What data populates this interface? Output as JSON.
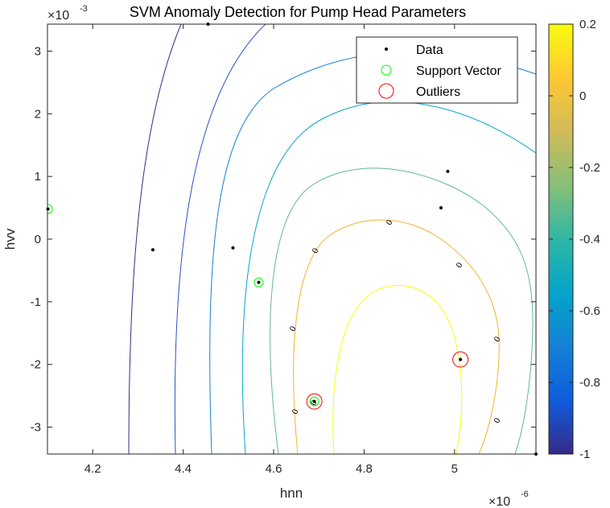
{
  "chart_data": {
    "type": "contour",
    "title": "SVM Anomaly Detection for Pump Head Parameters",
    "xlabel": "hnn",
    "ylabel": "hvv",
    "x_exponent": "×10",
    "x_exponent_power": "-6",
    "y_exponent": "×10",
    "y_exponent_power": "-3",
    "xlim": [
      4.1,
      5.18
    ],
    "ylim": [
      -3.43,
      3.43
    ],
    "x_ticks": [
      4.2,
      4.4,
      4.6,
      4.8,
      5
    ],
    "x_tick_labels": [
      "4.2",
      "4.4",
      "4.6",
      "4.8",
      "5"
    ],
    "y_ticks": [
      3,
      2,
      1,
      0,
      -1,
      -2,
      -3
    ],
    "y_tick_labels": [
      "3",
      "2",
      "1",
      "0",
      "-1",
      "-2",
      "-3"
    ],
    "colorbar": {
      "range": [
        -1,
        0.2
      ],
      "ticks": [
        0.2,
        0,
        -0.2,
        -0.4,
        -0.6,
        -0.8,
        -1
      ],
      "tick_labels": [
        "0.2",
        "0",
        "-0.2",
        "-0.4",
        "-0.6",
        "-0.8",
        "-1"
      ],
      "colormap": "parula"
    },
    "contour_level_labels": [
      "0",
      "0",
      "0",
      "0",
      "0",
      "0",
      "0",
      "0"
    ],
    "legend": {
      "placement": "top-right",
      "entries": [
        {
          "label": "Data",
          "marker": "dot",
          "color": "#000000"
        },
        {
          "label": "Support Vector",
          "marker": "circle",
          "color": "#00ff00"
        },
        {
          "label": "Outliers",
          "marker": "circle",
          "color": "#ff0000"
        }
      ]
    },
    "data_points": [
      {
        "x": 4.101,
        "y": 0.48
      },
      {
        "x": 4.333,
        "y": -0.17
      },
      {
        "x": 4.455,
        "y": 3.43
      },
      {
        "x": 4.51,
        "y": -0.14
      },
      {
        "x": 4.567,
        "y": -0.69
      },
      {
        "x": 4.69,
        "y": -2.59
      },
      {
        "x": 4.97,
        "y": 0.5
      },
      {
        "x": 4.985,
        "y": 1.08
      },
      {
        "x": 5.013,
        "y": -1.92
      },
      {
        "x": 5.18,
        "y": -3.43
      }
    ],
    "support_vectors": [
      {
        "x": 4.101,
        "y": 0.48
      },
      {
        "x": 4.567,
        "y": -0.69
      },
      {
        "x": 4.69,
        "y": -2.59
      }
    ],
    "outliers": [
      {
        "x": 4.69,
        "y": -2.59
      },
      {
        "x": 5.013,
        "y": -1.92
      }
    ]
  }
}
